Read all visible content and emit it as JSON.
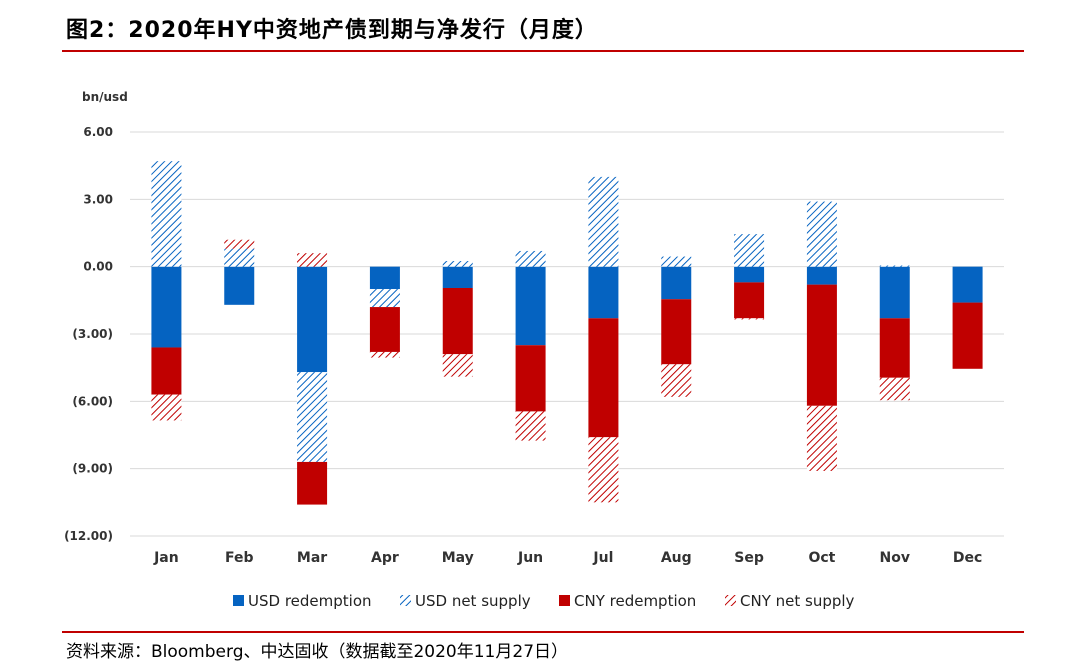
{
  "page": {
    "title": "图2：2020年HY中资地产债到期与净发行（月度）",
    "source": "资料来源：Bloomberg、中达固收（数据截至2020年11月27日）"
  },
  "colors": {
    "usd": "#0563C1",
    "cny": "#C00000",
    "rule": "#C00000",
    "grid": "#D9D9D9"
  },
  "chart_data": {
    "type": "bar",
    "stacked": true,
    "ylabel": "bn/usd",
    "ylim": [
      -12,
      6
    ],
    "yticks": [
      6,
      3,
      0,
      -3,
      -6,
      -9,
      -12
    ],
    "ytick_labels": [
      "6.00",
      "3.00",
      "0.00",
      "(3.00)",
      "(6.00)",
      "(9.00)",
      "(12.00)"
    ],
    "grid": true,
    "legend_position": "bottom",
    "categories": [
      "Jan",
      "Feb",
      "Mar",
      "Apr",
      "May",
      "Jun",
      "Jul",
      "Aug",
      "Sep",
      "Oct",
      "Nov",
      "Dec"
    ],
    "series": [
      {
        "name": "USD redemption",
        "style": "solid",
        "color": "#0563C1",
        "values": [
          -3.6,
          -1.7,
          -4.7,
          -1.0,
          -0.95,
          -3.5,
          -2.3,
          -1.45,
          -0.7,
          -0.8,
          -2.3,
          -1.6
        ]
      },
      {
        "name": "USD net supply",
        "style": "hatch",
        "color": "#0563C1",
        "values": [
          4.7,
          0.8,
          -4.0,
          -0.8,
          0.25,
          0.7,
          4.0,
          0.45,
          1.45,
          2.9,
          0.05,
          0.0
        ]
      },
      {
        "name": "CNY redemption",
        "style": "solid",
        "color": "#C00000",
        "values": [
          -2.1,
          0.0,
          -1.9,
          -2.0,
          -2.95,
          -2.95,
          -5.3,
          -2.9,
          -1.6,
          -5.4,
          -2.65,
          -2.95
        ]
      },
      {
        "name": "CNY net supply",
        "style": "hatch",
        "color": "#C00000",
        "values": [
          -1.15,
          0.4,
          0.6,
          -0.25,
          -1.0,
          -1.3,
          -2.9,
          -1.45,
          -0.05,
          -2.9,
          -1.0,
          0.0
        ]
      }
    ]
  }
}
